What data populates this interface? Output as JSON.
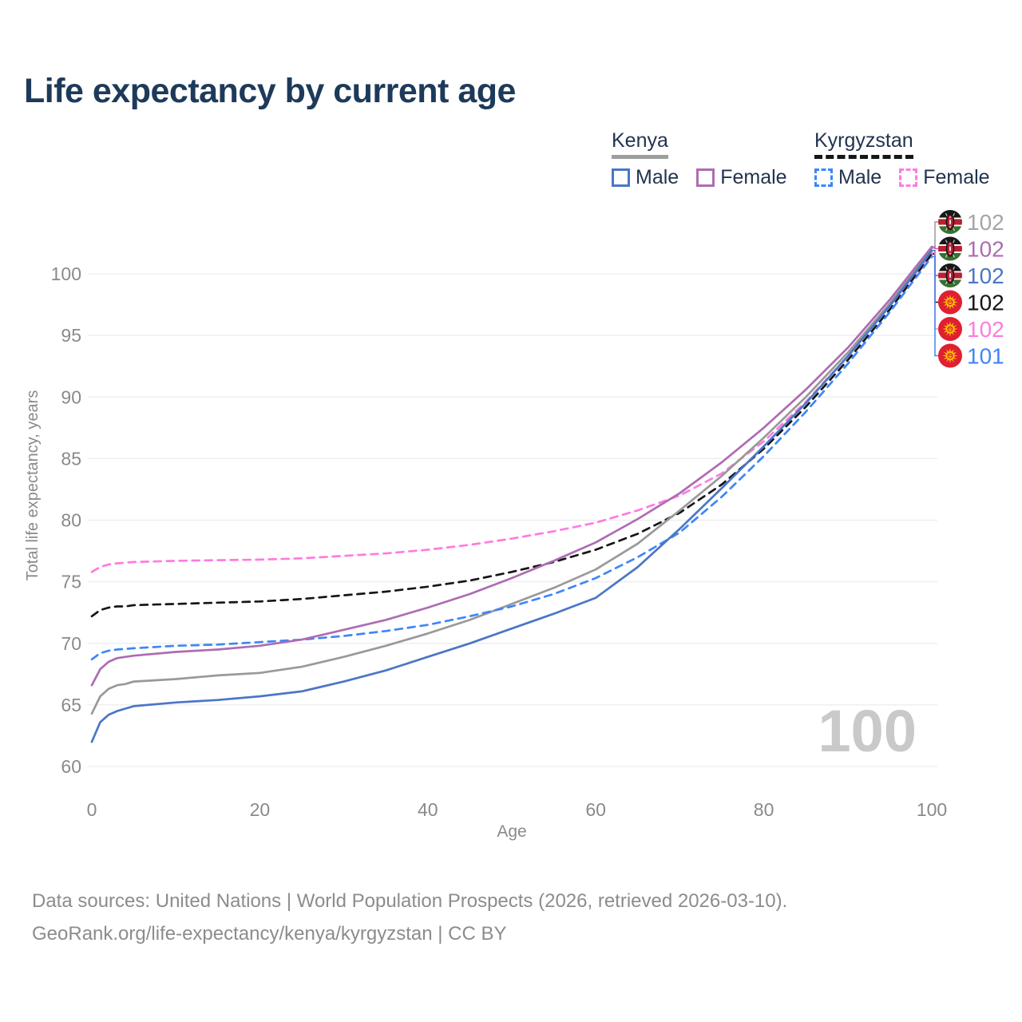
{
  "title": "Life expectancy by current age",
  "legend": {
    "groups": [
      {
        "name": "Kenya",
        "underline_style": "solid",
        "underline_color": "#9e9e9e",
        "items": [
          {
            "label": "Male",
            "color": "#4b76c6",
            "dash": false
          },
          {
            "label": "Female",
            "color": "#ad6cb3",
            "dash": false
          }
        ]
      },
      {
        "name": "Kyrgyzstan",
        "underline_style": "dashed",
        "underline_color": "#161616",
        "items": [
          {
            "label": "Male",
            "color": "#3e86f8",
            "dash": true
          },
          {
            "label": "Female",
            "color": "#ff7bdf",
            "dash": true
          }
        ]
      }
    ]
  },
  "watermark": {
    "text": "100",
    "color": "#c9c9c9"
  },
  "footer": {
    "line1": "Data sources: United Nations | World Population Prospects (2026, retrieved 2026-03-10).",
    "line2": "GeoRank.org/life-expectancy/kenya/kyrgyzstan | CC BY"
  },
  "chart_data": {
    "type": "line",
    "title": "Life expectancy by current age",
    "xlabel": "Age",
    "ylabel": "Total life expectancy, years",
    "xlim": [
      0,
      100
    ],
    "ylim": [
      60,
      103
    ],
    "xticks": [
      0,
      20,
      40,
      60,
      80,
      100
    ],
    "yticks": [
      60,
      65,
      70,
      75,
      80,
      85,
      90,
      95,
      100
    ],
    "grid": "horizontal-only",
    "grid_color": "#ececec",
    "tick_color": "#8a8a8a",
    "x": [
      0,
      1,
      2,
      3,
      4,
      5,
      10,
      15,
      20,
      25,
      30,
      35,
      40,
      45,
      50,
      55,
      60,
      65,
      70,
      75,
      80,
      85,
      90,
      95,
      100
    ],
    "series": [
      {
        "key": "kyrgyzstan_female",
        "name": "Kyrgyzstan Female",
        "country": "Kyrgyzstan",
        "color": "#ff7bdf",
        "dash": true,
        "values": [
          75.8,
          76.2,
          76.4,
          76.5,
          76.55,
          76.6,
          76.7,
          76.75,
          76.8,
          76.9,
          77.1,
          77.3,
          77.6,
          78.0,
          78.5,
          79.1,
          79.8,
          80.8,
          82.0,
          83.8,
          86.4,
          89.6,
          93.3,
          97.4,
          101.7
        ]
      },
      {
        "key": "kyrgyzstan_total",
        "name": "Kyrgyzstan Total",
        "country": "Kyrgyzstan",
        "color": "#161616",
        "dash": true,
        "values": [
          72.2,
          72.7,
          72.9,
          73.0,
          73.0,
          73.1,
          73.2,
          73.3,
          73.4,
          73.6,
          73.9,
          74.2,
          74.6,
          75.1,
          75.8,
          76.6,
          77.6,
          78.9,
          80.6,
          82.9,
          85.8,
          89.2,
          93.0,
          97.1,
          101.6
        ]
      },
      {
        "key": "kenya_total",
        "name": "Kenya Total",
        "country": "Kenya",
        "color": "#999999",
        "dash": false,
        "values": [
          64.3,
          65.7,
          66.3,
          66.6,
          66.7,
          66.9,
          67.1,
          67.4,
          67.6,
          68.1,
          68.9,
          69.8,
          70.8,
          71.9,
          73.2,
          74.5,
          76.0,
          78.1,
          80.8,
          83.6,
          86.7,
          90.0,
          93.6,
          97.6,
          102.1
        ]
      },
      {
        "key": "kyrgyzstan_male",
        "name": "Kyrgyzstan Male",
        "country": "Kyrgyzstan",
        "color": "#3e86f8",
        "dash": true,
        "values": [
          68.7,
          69.2,
          69.4,
          69.5,
          69.55,
          69.6,
          69.8,
          69.9,
          70.1,
          70.3,
          70.6,
          71.0,
          71.5,
          72.2,
          73.0,
          74.0,
          75.3,
          77.0,
          79.0,
          81.9,
          85.2,
          88.8,
          92.7,
          96.9,
          101.4
        ]
      },
      {
        "key": "kenya_male",
        "name": "Kenya Male",
        "country": "Kenya",
        "color": "#4b76c6",
        "dash": false,
        "values": [
          62.0,
          63.6,
          64.2,
          64.5,
          64.7,
          64.9,
          65.2,
          65.4,
          65.7,
          66.1,
          66.9,
          67.8,
          68.9,
          70.0,
          71.2,
          72.4,
          73.7,
          76.2,
          79.3,
          82.6,
          86.0,
          89.5,
          93.3,
          97.4,
          101.9
        ]
      },
      {
        "key": "kenya_female",
        "name": "Kenya Female",
        "country": "Kenya",
        "color": "#ad6cb3",
        "dash": false,
        "values": [
          66.6,
          67.9,
          68.5,
          68.8,
          68.9,
          69.0,
          69.3,
          69.5,
          69.8,
          70.3,
          71.1,
          71.9,
          72.9,
          74.0,
          75.3,
          76.7,
          78.2,
          80.1,
          82.2,
          84.7,
          87.5,
          90.6,
          94.0,
          97.9,
          102.2
        ]
      }
    ],
    "end_labels": [
      {
        "series": "kenya_total",
        "flag": "kenya",
        "value": "102",
        "text_color": "#a6a6a6"
      },
      {
        "series": "kenya_female",
        "flag": "kenya",
        "value": "102",
        "text_color": "#ad6cb3"
      },
      {
        "series": "kenya_male",
        "flag": "kenya",
        "value": "102",
        "text_color": "#4b76c6"
      },
      {
        "series": "kyrgyzstan_total",
        "flag": "kyrgyzstan",
        "value": "102",
        "text_color": "#161616"
      },
      {
        "series": "kyrgyzstan_female",
        "flag": "kyrgyzstan",
        "value": "102",
        "text_color": "#ff7bdf"
      },
      {
        "series": "kyrgyzstan_male",
        "flag": "kyrgyzstan",
        "value": "101",
        "text_color": "#3e86f8"
      }
    ]
  }
}
